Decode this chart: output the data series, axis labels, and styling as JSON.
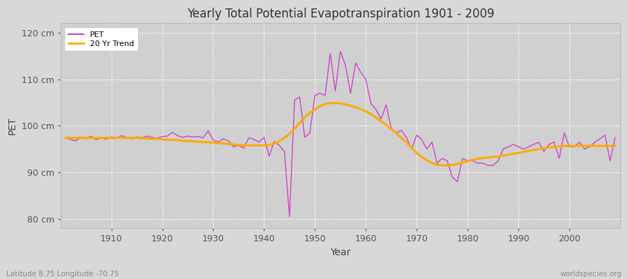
{
  "title": "Yearly Total Potential Evapotranspiration 1901 - 2009",
  "xlabel": "Year",
  "ylabel": "PET",
  "subtitle_left": "Latitude 8.75 Longitude -70.75",
  "subtitle_right": "worldspecies.org",
  "pet_color": "#cc44cc",
  "trend_color": "#ffaa00",
  "background_color": "#d8d8d8",
  "plot_bg_color": "#d0d0d0",
  "ylim": [
    78,
    122
  ],
  "yticks": [
    80,
    90,
    100,
    110,
    120
  ],
  "ytick_labels": [
    "80 cm",
    "90 cm",
    "100 cm",
    "110 cm",
    "120 cm"
  ],
  "xlim": [
    1900,
    2010
  ],
  "xticks": [
    1910,
    1920,
    1930,
    1940,
    1950,
    1960,
    1970,
    1980,
    1990,
    2000
  ],
  "years": [
    1901,
    1902,
    1903,
    1904,
    1905,
    1906,
    1907,
    1908,
    1909,
    1910,
    1911,
    1912,
    1913,
    1914,
    1915,
    1916,
    1917,
    1918,
    1919,
    1920,
    1921,
    1922,
    1923,
    1924,
    1925,
    1926,
    1927,
    1928,
    1929,
    1930,
    1931,
    1932,
    1933,
    1934,
    1935,
    1936,
    1937,
    1938,
    1939,
    1940,
    1941,
    1942,
    1943,
    1944,
    1945,
    1946,
    1947,
    1948,
    1949,
    1950,
    1951,
    1952,
    1953,
    1954,
    1955,
    1956,
    1957,
    1958,
    1959,
    1960,
    1961,
    1962,
    1963,
    1964,
    1965,
    1966,
    1967,
    1968,
    1969,
    1970,
    1971,
    1972,
    1973,
    1974,
    1975,
    1976,
    1977,
    1978,
    1979,
    1980,
    1981,
    1982,
    1983,
    1984,
    1985,
    1986,
    1987,
    1988,
    1989,
    1990,
    1991,
    1992,
    1993,
    1994,
    1995,
    1996,
    1997,
    1998,
    1999,
    2000,
    2001,
    2002,
    2003,
    2004,
    2005,
    2006,
    2007,
    2008,
    2009
  ],
  "pet_values": [
    97.5,
    97.0,
    96.8,
    97.5,
    97.2,
    97.8,
    97.0,
    97.4,
    97.1,
    97.6,
    97.3,
    97.9,
    97.5,
    97.2,
    97.6,
    97.4,
    97.8,
    97.5,
    97.3,
    97.7,
    97.8,
    98.6,
    97.9,
    97.5,
    97.8,
    97.6,
    97.7,
    97.4,
    98.9,
    97.0,
    96.5,
    97.2,
    96.8,
    95.5,
    95.8,
    95.2,
    97.4,
    97.1,
    96.5,
    97.5,
    93.5,
    96.6,
    95.8,
    94.5,
    80.5,
    105.5,
    106.2,
    97.5,
    98.5,
    106.5,
    107.0,
    106.5,
    115.5,
    107.5,
    116.0,
    113.0,
    107.0,
    113.5,
    111.5,
    110.0,
    104.8,
    103.5,
    101.5,
    104.5,
    99.5,
    98.5,
    99.0,
    97.5,
    95.0,
    98.0,
    97.0,
    95.0,
    96.5,
    92.0,
    93.0,
    92.5,
    89.0,
    88.0,
    93.0,
    92.5,
    92.5,
    92.0,
    92.0,
    91.5,
    91.5,
    92.5,
    95.0,
    95.5,
    96.0,
    95.5,
    95.0,
    95.5,
    96.0,
    96.5,
    94.5,
    96.0,
    96.5,
    93.0,
    98.5,
    95.5,
    95.5,
    96.5,
    95.0,
    95.5,
    96.5,
    97.2,
    98.0,
    92.5,
    97.5
  ],
  "trend_years": [
    1901,
    1902,
    1903,
    1904,
    1905,
    1906,
    1907,
    1908,
    1909,
    1910,
    1911,
    1912,
    1913,
    1914,
    1915,
    1916,
    1917,
    1918,
    1919,
    1920,
    1921,
    1922,
    1923,
    1924,
    1925,
    1926,
    1927,
    1928,
    1929,
    1930,
    1931,
    1932,
    1933,
    1934,
    1935,
    1936,
    1937,
    1938,
    1939,
    1940,
    1941,
    1942,
    1943,
    1944,
    1945,
    1946,
    1947,
    1948,
    1949,
    1950,
    1951,
    1952,
    1953,
    1954,
    1955,
    1956,
    1957,
    1958,
    1959,
    1960,
    1961,
    1962,
    1963,
    1964,
    1965,
    1966,
    1967,
    1968,
    1969,
    1970,
    1971,
    1972,
    1973,
    1974,
    1975,
    1976,
    1977,
    1978,
    1979,
    1980,
    1981,
    1982,
    1983,
    1984,
    1985,
    1986,
    1987,
    1988,
    1989,
    1990,
    1991,
    1992,
    1993,
    1994,
    1995,
    1996,
    1997,
    1998,
    1999,
    2000,
    2001,
    2002,
    2003,
    2004,
    2005,
    2006,
    2007,
    2008,
    2009
  ],
  "trend_values": [
    97.4,
    97.4,
    97.4,
    97.4,
    97.4,
    97.4,
    97.4,
    97.4,
    97.4,
    97.4,
    97.4,
    97.4,
    97.4,
    97.4,
    97.4,
    97.3,
    97.3,
    97.2,
    97.2,
    97.1,
    97.0,
    97.0,
    96.9,
    96.8,
    96.7,
    96.7,
    96.6,
    96.5,
    96.5,
    96.4,
    96.3,
    96.2,
    96.1,
    96.0,
    95.9,
    95.8,
    95.8,
    95.8,
    95.8,
    95.8,
    95.9,
    96.2,
    96.7,
    97.4,
    98.3,
    99.4,
    100.6,
    101.8,
    102.8,
    103.5,
    104.2,
    104.7,
    104.9,
    104.9,
    104.8,
    104.6,
    104.3,
    104.0,
    103.6,
    103.1,
    102.5,
    101.8,
    101.0,
    100.2,
    99.3,
    98.4,
    97.4,
    96.4,
    95.3,
    94.2,
    93.3,
    92.6,
    92.0,
    91.7,
    91.5,
    91.5,
    91.6,
    91.8,
    92.1,
    92.4,
    92.7,
    92.9,
    93.1,
    93.2,
    93.3,
    93.4,
    93.6,
    93.8,
    94.0,
    94.2,
    94.4,
    94.6,
    94.8,
    95.0,
    95.2,
    95.4,
    95.5,
    95.6,
    95.7,
    95.7,
    95.7,
    95.7,
    95.7,
    95.7,
    95.7,
    95.7,
    95.7,
    95.7,
    95.7
  ]
}
